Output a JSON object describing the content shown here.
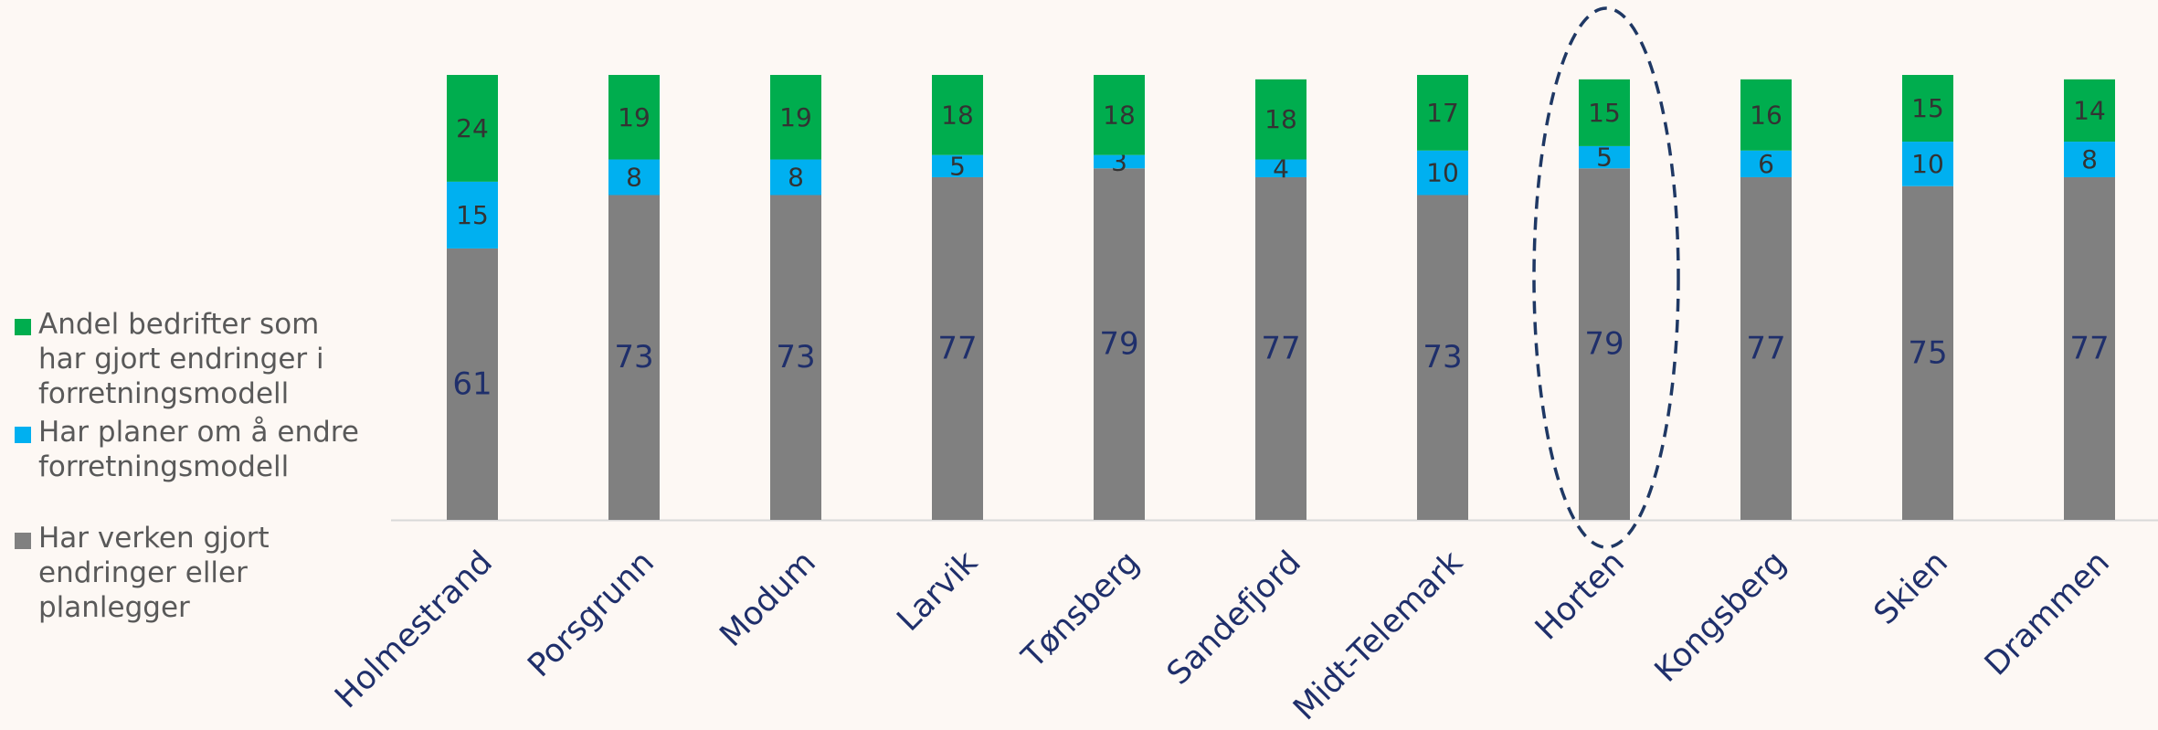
{
  "colors": {
    "background": "#fdf8f4",
    "green": "#00ad4e",
    "blue": "#00b0f0",
    "gray": "#808080",
    "axis_label": "#1f2f6b",
    "segment_label_dark": "#333333",
    "segment_label_base": "#1f2f6b",
    "highlight_ellipse": "#1f3864"
  },
  "legend": {
    "items": [
      {
        "label": "Andel bedrifter som\nhar gjort endringer i\nforretningsmodell",
        "color": "#00ad4e"
      },
      {
        "label": "Har planer om å endre\nforretningsmodell",
        "color": "#00b0f0"
      },
      {
        "label": "Har verken gjort\nendringer eller\nplanlegger",
        "color": "#808080"
      }
    ]
  },
  "chart_data": {
    "type": "bar",
    "stacked": true,
    "categories": [
      "Holmestrand",
      "Porsgrunn",
      "Modum",
      "Larvik",
      "Tønsberg",
      "Sandefjord",
      "Midt-Telemark",
      "Horten",
      "Kongsberg",
      "Skien",
      "Drammen"
    ],
    "series": [
      {
        "name": "Har verken gjort endringer eller planlegger",
        "color": "#808080",
        "values": [
          61,
          73,
          73,
          77,
          79,
          77,
          73,
          79,
          77,
          75,
          77
        ]
      },
      {
        "name": "Har planer om å endre forretningsmodell",
        "color": "#00b0f0",
        "values": [
          15,
          8,
          8,
          5,
          3,
          4,
          10,
          5,
          6,
          10,
          8
        ]
      },
      {
        "name": "Andel bedrifter som har gjort endringer i forretningsmodell",
        "color": "#00ad4e",
        "values": [
          24,
          19,
          19,
          18,
          18,
          18,
          17,
          15,
          16,
          15,
          14
        ]
      }
    ],
    "ylim": [
      0,
      100
    ],
    "grid": false,
    "legend_position": "left",
    "highlight_category": "Horten",
    "tick_label_rotation": -45
  }
}
